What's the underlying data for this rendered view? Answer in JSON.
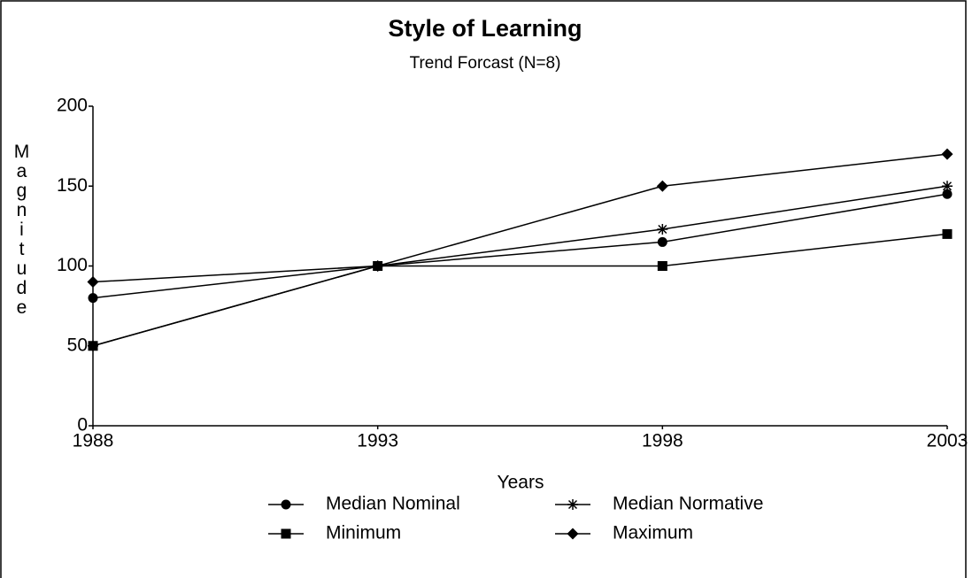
{
  "chart_data": {
    "type": "line",
    "title": "Style of Learning",
    "subtitle": "Trend Forcast (N=8)",
    "x_label": "Years",
    "y_label": "Magnitude",
    "x": [
      1988,
      1993,
      1998,
      2003
    ],
    "xlim": [
      1988,
      2003
    ],
    "xticks": [
      1988,
      1993,
      1998,
      2003
    ],
    "ylim": [
      0,
      200
    ],
    "yticks": [
      0,
      50,
      100,
      150,
      200
    ],
    "grid": false,
    "legend": "bottom",
    "series": [
      {
        "name": "Median Nominal",
        "color": "#000000",
        "marker": "circle",
        "values": [
          80,
          100,
          115,
          145
        ]
      },
      {
        "name": "Median Normative",
        "color": "#000000",
        "marker": "star",
        "values": [
          50,
          100,
          123,
          150
        ]
      },
      {
        "name": "Minimum",
        "color": "#000000",
        "marker": "square",
        "values": [
          50,
          100,
          100,
          120
        ]
      },
      {
        "name": "Maximum",
        "color": "#000000",
        "marker": "diamond",
        "values": [
          90,
          100,
          150,
          170
        ]
      }
    ]
  }
}
